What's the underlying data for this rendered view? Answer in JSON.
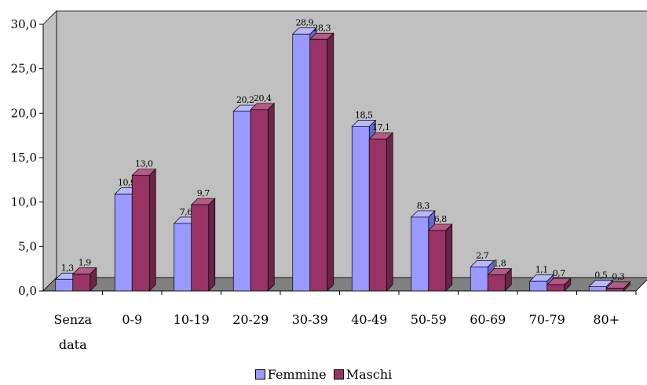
{
  "chart_data": {
    "type": "bar",
    "categories": [
      [
        "Senza",
        "data"
      ],
      [
        "0-9"
      ],
      [
        "10-19"
      ],
      [
        "20-29"
      ],
      [
        "30-39"
      ],
      [
        "40-49"
      ],
      [
        "50-59"
      ],
      [
        "60-69"
      ],
      [
        "70-79"
      ],
      [
        "80+"
      ]
    ],
    "series": [
      {
        "name": "Femmine",
        "values": [
          1.3,
          10.9,
          7.6,
          20.2,
          28.9,
          18.5,
          8.3,
          2.7,
          1.1,
          0.5
        ],
        "labels": [
          "1,3",
          "10,9",
          "7,6",
          "20,2",
          "28,9",
          "18,5",
          "8,3",
          "2,7",
          "1,1",
          "0,5"
        ]
      },
      {
        "name": "Maschi",
        "values": [
          1.9,
          13.0,
          9.7,
          20.4,
          28.3,
          17.1,
          6.8,
          1.8,
          0.7,
          0.3
        ],
        "labels": [
          "1,9",
          "13,0",
          "9,7",
          "20,4",
          "28,3",
          "17,1",
          "6,8",
          "1,8",
          "0,7",
          "0,3"
        ]
      }
    ],
    "yticks": [
      "0,0",
      "5,0",
      "10,0",
      "15,0",
      "20,0",
      "25,0",
      "30,0"
    ],
    "ylim": [
      0,
      30
    ],
    "legend_position": "bottom",
    "colors": {
      "femmine_front": "#9999ff",
      "femmine_side": "#6666cc",
      "femmine_top": "#b8b8ff",
      "maschi_front": "#993366",
      "maschi_side": "#6b2347",
      "maschi_top": "#b35a85",
      "wall": "#c0c0c0",
      "floor": "#808080"
    }
  },
  "legend": {
    "femmine": "Femmine",
    "maschi": "Maschi"
  }
}
